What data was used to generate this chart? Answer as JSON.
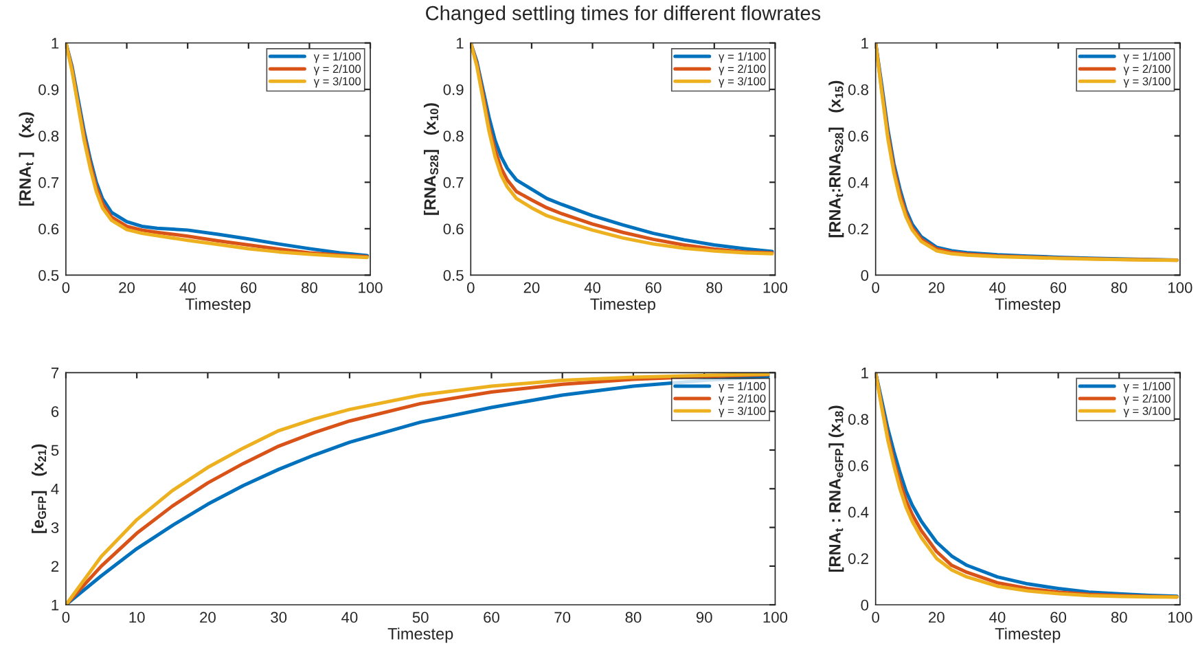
{
  "chart_data": [
    {
      "type": "line",
      "xlabel": "Timestep",
      "ylabel": "[RNA$_{t}$ ]   (x$_{8}$)",
      "xlim": [
        0,
        100
      ],
      "xticks": [
        0,
        20,
        40,
        60,
        80,
        100
      ],
      "ylim": [
        0.5,
        1
      ],
      "yticks": [
        0.5,
        0.6,
        0.7,
        0.8,
        0.9,
        1
      ],
      "grid": false,
      "legend": "top right",
      "line_style": "solid",
      "marker": "none",
      "x": [
        0,
        2,
        4,
        6,
        8,
        10,
        12,
        15,
        20,
        25,
        30,
        40,
        50,
        60,
        70,
        80,
        90,
        99
      ],
      "series": [
        {
          "name": "γ = 1/100",
          "color": "#0072bd",
          "values": [
            1,
            0.95,
            0.88,
            0.81,
            0.75,
            0.7,
            0.665,
            0.635,
            0.615,
            0.605,
            0.601,
            0.597,
            0.588,
            0.578,
            0.567,
            0.557,
            0.548,
            0.542
          ]
        },
        {
          "name": "γ = 2/100",
          "color": "#d95319",
          "values": [
            1,
            0.945,
            0.87,
            0.8,
            0.74,
            0.69,
            0.655,
            0.625,
            0.605,
            0.597,
            0.592,
            0.584,
            0.574,
            0.565,
            0.556,
            0.548,
            0.543,
            0.54
          ]
        },
        {
          "name": "γ = 3/100",
          "color": "#edb120",
          "values": [
            1,
            0.94,
            0.865,
            0.79,
            0.73,
            0.68,
            0.645,
            0.618,
            0.598,
            0.59,
            0.585,
            0.575,
            0.566,
            0.557,
            0.55,
            0.545,
            0.541,
            0.538
          ]
        }
      ]
    },
    {
      "type": "line",
      "title": "Changed settling times for different flowrates",
      "xlabel": "Timestep",
      "ylabel": "[RNA$_{S28}$]   (x$_{10}$)",
      "xlim": [
        0,
        100
      ],
      "xticks": [
        0,
        20,
        40,
        60,
        80,
        100
      ],
      "ylim": [
        0.5,
        1
      ],
      "yticks": [
        0.5,
        0.6,
        0.7,
        0.8,
        0.9,
        1
      ],
      "grid": false,
      "legend": "top right",
      "line_style": "solid",
      "marker": "none",
      "x": [
        0,
        2,
        4,
        6,
        8,
        10,
        12,
        15,
        20,
        25,
        30,
        40,
        50,
        60,
        70,
        80,
        90,
        99
      ],
      "series": [
        {
          "name": "γ = 1/100",
          "color": "#0072bd",
          "values": [
            1,
            0.96,
            0.9,
            0.84,
            0.79,
            0.755,
            0.73,
            0.705,
            0.685,
            0.665,
            0.652,
            0.628,
            0.608,
            0.59,
            0.576,
            0.565,
            0.557,
            0.551
          ]
        },
        {
          "name": "γ = 2/100",
          "color": "#d95319",
          "values": [
            1,
            0.955,
            0.89,
            0.82,
            0.77,
            0.73,
            0.705,
            0.68,
            0.662,
            0.645,
            0.632,
            0.61,
            0.592,
            0.577,
            0.565,
            0.556,
            0.55,
            0.548
          ]
        },
        {
          "name": "γ = 3/100",
          "color": "#edb120",
          "values": [
            1,
            0.95,
            0.88,
            0.81,
            0.755,
            0.715,
            0.69,
            0.665,
            0.645,
            0.628,
            0.617,
            0.597,
            0.58,
            0.567,
            0.558,
            0.552,
            0.548,
            0.546
          ]
        }
      ]
    },
    {
      "type": "line",
      "xlabel": "Timestep",
      "ylabel": "[RNA$_{t}$:RNA$_{S28}$]   (x$_{15}$)",
      "xlim": [
        0,
        100
      ],
      "xticks": [
        0,
        20,
        40,
        60,
        80,
        100
      ],
      "ylim": [
        0,
        1
      ],
      "yticks": [
        0,
        0.2,
        0.4,
        0.6,
        0.8,
        1
      ],
      "grid": false,
      "legend": "top right",
      "line_style": "solid",
      "marker": "none",
      "x": [
        0,
        2,
        4,
        6,
        8,
        10,
        12,
        15,
        20,
        25,
        30,
        40,
        50,
        60,
        70,
        80,
        90,
        99
      ],
      "series": [
        {
          "name": "γ = 1/100",
          "color": "#0072bd",
          "values": [
            1,
            0.82,
            0.63,
            0.48,
            0.37,
            0.28,
            0.22,
            0.165,
            0.12,
            0.105,
            0.097,
            0.088,
            0.082,
            0.077,
            0.073,
            0.07,
            0.067,
            0.065
          ]
        },
        {
          "name": "γ = 2/100",
          "color": "#d95319",
          "values": [
            1,
            0.8,
            0.61,
            0.46,
            0.35,
            0.265,
            0.205,
            0.155,
            0.113,
            0.098,
            0.091,
            0.083,
            0.078,
            0.074,
            0.071,
            0.068,
            0.066,
            0.064
          ]
        },
        {
          "name": "γ = 3/100",
          "color": "#edb120",
          "values": [
            1,
            0.79,
            0.59,
            0.44,
            0.33,
            0.25,
            0.195,
            0.145,
            0.105,
            0.092,
            0.086,
            0.08,
            0.076,
            0.072,
            0.069,
            0.067,
            0.065,
            0.064
          ]
        }
      ]
    },
    {
      "type": "line",
      "xlabel": "Timestep",
      "ylabel": "[e$_{GFP}$]   (x$_{21}$)",
      "xlim": [
        0,
        100
      ],
      "xticks": [
        0,
        10,
        20,
        30,
        40,
        50,
        60,
        70,
        80,
        90,
        100
      ],
      "ylim": [
        1,
        7
      ],
      "yticks": [
        1,
        2,
        3,
        4,
        5,
        6,
        7
      ],
      "grid": false,
      "legend": "top right",
      "line_style": "solid",
      "marker": "none",
      "x": [
        0,
        5,
        10,
        15,
        20,
        25,
        30,
        35,
        40,
        50,
        60,
        70,
        80,
        90,
        99
      ],
      "series": [
        {
          "name": "γ = 1/100",
          "color": "#0072bd",
          "values": [
            1,
            1.75,
            2.45,
            3.05,
            3.6,
            4.08,
            4.5,
            4.87,
            5.2,
            5.72,
            6.1,
            6.42,
            6.65,
            6.8,
            6.9
          ]
        },
        {
          "name": "γ = 2/100",
          "color": "#d95319",
          "values": [
            1,
            2.0,
            2.85,
            3.55,
            4.15,
            4.65,
            5.1,
            5.45,
            5.75,
            6.2,
            6.5,
            6.7,
            6.83,
            6.9,
            6.95
          ]
        },
        {
          "name": "γ = 3/100",
          "color": "#edb120",
          "values": [
            1,
            2.25,
            3.2,
            3.95,
            4.55,
            5.05,
            5.5,
            5.8,
            6.05,
            6.42,
            6.65,
            6.8,
            6.88,
            6.93,
            6.96
          ]
        }
      ]
    },
    {
      "type": "line",
      "xlabel": "Timestep",
      "ylabel": "[RNA$_{t}$ : RNA$_{eGFP}$] (x$_{18}$)",
      "xlim": [
        0,
        100
      ],
      "xticks": [
        0,
        20,
        40,
        60,
        80,
        100
      ],
      "ylim": [
        0,
        1
      ],
      "yticks": [
        0,
        0.2,
        0.4,
        0.6,
        0.8,
        1
      ],
      "grid": false,
      "legend": "top right",
      "line_style": "solid",
      "marker": "none",
      "x": [
        0,
        2,
        4,
        6,
        8,
        10,
        12,
        15,
        20,
        25,
        30,
        40,
        50,
        60,
        70,
        80,
        90,
        99
      ],
      "series": [
        {
          "name": "γ = 1/100",
          "color": "#0072bd",
          "values": [
            1,
            0.88,
            0.76,
            0.66,
            0.57,
            0.49,
            0.43,
            0.36,
            0.27,
            0.21,
            0.17,
            0.12,
            0.09,
            0.07,
            0.055,
            0.047,
            0.041,
            0.037
          ]
        },
        {
          "name": "γ = 2/100",
          "color": "#d95319",
          "values": [
            1,
            0.86,
            0.73,
            0.62,
            0.53,
            0.45,
            0.39,
            0.32,
            0.23,
            0.17,
            0.14,
            0.095,
            0.07,
            0.055,
            0.045,
            0.04,
            0.036,
            0.034
          ]
        },
        {
          "name": "γ = 3/100",
          "color": "#edb120",
          "values": [
            1,
            0.85,
            0.71,
            0.6,
            0.5,
            0.42,
            0.36,
            0.29,
            0.2,
            0.15,
            0.12,
            0.08,
            0.06,
            0.048,
            0.04,
            0.036,
            0.034,
            0.033
          ]
        }
      ]
    }
  ]
}
